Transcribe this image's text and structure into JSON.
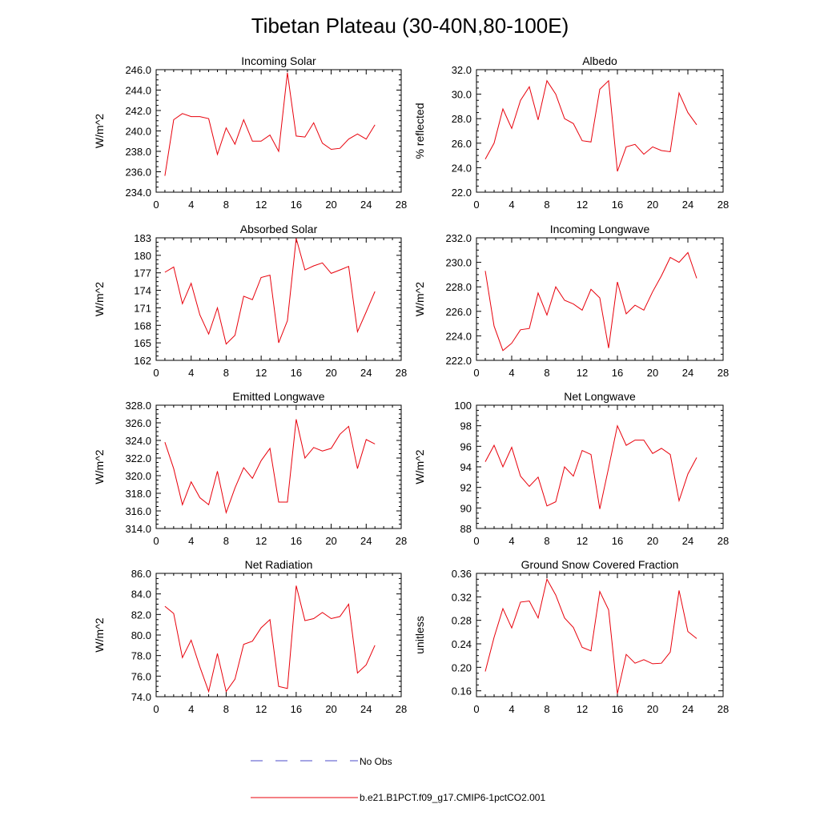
{
  "figure": {
    "title": "Tibetan Plateau (30-40N,80-100E)",
    "line_color": "#e8000b",
    "obs_color": "#4b4bc8",
    "legend": [
      {
        "label": "No Obs",
        "style": "dashed"
      },
      {
        "label": "b.e21.B1PCT.f09_g17.CMIP6-1pctCO2.001",
        "style": "solid"
      }
    ]
  },
  "chart_data": [
    {
      "type": "line",
      "title": "Incoming Solar",
      "ylabel": "W/m^2",
      "xlim": [
        0,
        28
      ],
      "ylim": [
        234,
        246
      ],
      "xticks": [
        "0",
        "4",
        "8",
        "12",
        "16",
        "20",
        "24",
        "28"
      ],
      "yticks": [
        "234.0",
        "236.0",
        "238.0",
        "240.0",
        "242.0",
        "244.0",
        "246.0"
      ],
      "x": [
        1,
        2,
        3,
        4,
        5,
        6,
        7,
        8,
        9,
        10,
        11,
        12,
        13,
        14,
        15,
        16,
        17,
        18,
        19,
        20,
        21,
        22,
        23,
        24,
        25
      ],
      "series": [
        {
          "values": [
            235.6,
            241.1,
            241.7,
            241.4,
            241.4,
            241.2,
            237.7,
            240.3,
            238.7,
            241.1,
            239.0,
            239.0,
            239.6,
            238.0,
            245.7,
            239.5,
            239.4,
            240.8,
            238.8,
            238.2,
            238.3,
            239.2,
            239.7,
            239.2,
            240.6
          ]
        }
      ]
    },
    {
      "type": "line",
      "title": "Albedo",
      "ylabel": "% reflected",
      "xlim": [
        0,
        28
      ],
      "ylim": [
        22,
        32
      ],
      "xticks": [
        "0",
        "4",
        "8",
        "12",
        "16",
        "20",
        "24",
        "28"
      ],
      "yticks": [
        "22.0",
        "24.0",
        "26.0",
        "28.0",
        "30.0",
        "32.0"
      ],
      "x": [
        1,
        2,
        3,
        4,
        5,
        6,
        7,
        8,
        9,
        10,
        11,
        12,
        13,
        14,
        15,
        16,
        17,
        18,
        19,
        20,
        21,
        22,
        23,
        24,
        25
      ],
      "series": [
        {
          "values": [
            24.7,
            26.0,
            28.8,
            27.2,
            29.5,
            30.6,
            27.9,
            31.1,
            30.0,
            28.0,
            27.6,
            26.2,
            26.1,
            30.4,
            31.1,
            23.7,
            25.7,
            25.9,
            25.1,
            25.7,
            25.4,
            25.3,
            30.1,
            28.5,
            27.5
          ]
        }
      ]
    },
    {
      "type": "line",
      "title": "Absorbed Solar",
      "ylabel": "W/m^2",
      "xlim": [
        0,
        28
      ],
      "ylim": [
        162,
        183
      ],
      "xticks": [
        "0",
        "4",
        "8",
        "12",
        "16",
        "20",
        "24",
        "28"
      ],
      "yticks": [
        "162",
        "165",
        "168",
        "171",
        "174",
        "177",
        "180",
        "183"
      ],
      "x": [
        1,
        2,
        3,
        4,
        5,
        6,
        7,
        8,
        9,
        10,
        11,
        12,
        13,
        14,
        15,
        16,
        17,
        18,
        19,
        20,
        21,
        22,
        23,
        24,
        25
      ],
      "series": [
        {
          "values": [
            177.1,
            178.0,
            171.7,
            175.2,
            169.8,
            166.5,
            171.0,
            164.8,
            166.3,
            173.0,
            172.4,
            176.2,
            176.6,
            165.0,
            168.8,
            182.9,
            177.5,
            178.2,
            178.7,
            176.9,
            177.5,
            178.1,
            166.9,
            170.3,
            173.8
          ]
        }
      ]
    },
    {
      "type": "line",
      "title": "Incoming Longwave",
      "ylabel": "W/m^2",
      "xlim": [
        0,
        28
      ],
      "ylim": [
        222,
        232
      ],
      "xticks": [
        "0",
        "4",
        "8",
        "12",
        "16",
        "20",
        "24",
        "28"
      ],
      "yticks": [
        "222.0",
        "224.0",
        "226.0",
        "228.0",
        "230.0",
        "232.0"
      ],
      "x": [
        1,
        2,
        3,
        4,
        5,
        6,
        7,
        8,
        9,
        10,
        11,
        12,
        13,
        14,
        15,
        16,
        17,
        18,
        19,
        20,
        21,
        22,
        23,
        24,
        25
      ],
      "series": [
        {
          "values": [
            229.3,
            224.8,
            222.8,
            223.4,
            224.5,
            224.6,
            227.5,
            225.7,
            228.0,
            226.9,
            226.6,
            226.1,
            227.8,
            227.1,
            223.0,
            228.4,
            225.8,
            226.5,
            226.1,
            227.6,
            228.9,
            230.4,
            230.0,
            230.8,
            228.7
          ]
        }
      ]
    },
    {
      "type": "line",
      "title": "Emitted Longwave",
      "ylabel": "W/m^2",
      "xlim": [
        0,
        28
      ],
      "ylim": [
        314,
        328
      ],
      "xticks": [
        "0",
        "4",
        "8",
        "12",
        "16",
        "20",
        "24",
        "28"
      ],
      "yticks": [
        "314.0",
        "316.0",
        "318.0",
        "320.0",
        "322.0",
        "324.0",
        "326.0",
        "328.0"
      ],
      "x": [
        1,
        2,
        3,
        4,
        5,
        6,
        7,
        8,
        9,
        10,
        11,
        12,
        13,
        14,
        15,
        16,
        17,
        18,
        19,
        20,
        21,
        22,
        23,
        24,
        25
      ],
      "series": [
        {
          "values": [
            323.8,
            320.8,
            316.7,
            319.3,
            317.5,
            316.7,
            320.5,
            315.8,
            318.6,
            320.9,
            319.7,
            321.7,
            323.1,
            317.0,
            317.0,
            326.4,
            322.0,
            323.2,
            322.8,
            323.1,
            324.7,
            325.6,
            320.8,
            324.1,
            323.6
          ]
        }
      ]
    },
    {
      "type": "line",
      "title": "Net Longwave",
      "ylabel": "W/m^2",
      "xlim": [
        0,
        28
      ],
      "ylim": [
        88,
        100
      ],
      "xticks": [
        "0",
        "4",
        "8",
        "12",
        "16",
        "20",
        "24",
        "28"
      ],
      "yticks": [
        "88",
        "90",
        "92",
        "94",
        "96",
        "98",
        "100"
      ],
      "x": [
        1,
        2,
        3,
        4,
        5,
        6,
        7,
        8,
        9,
        10,
        11,
        12,
        13,
        14,
        15,
        16,
        17,
        18,
        19,
        20,
        21,
        22,
        23,
        24,
        25
      ],
      "series": [
        {
          "values": [
            94.5,
            96.1,
            94.0,
            95.9,
            93.1,
            92.1,
            93.0,
            90.2,
            90.6,
            94.0,
            93.1,
            95.6,
            95.2,
            89.9,
            93.9,
            98.0,
            96.1,
            96.6,
            96.6,
            95.3,
            95.8,
            95.2,
            90.7,
            93.3,
            94.9
          ]
        }
      ]
    },
    {
      "type": "line",
      "title": "Net Radiation",
      "ylabel": "W/m^2",
      "xlim": [
        0,
        28
      ],
      "ylim": [
        74,
        86
      ],
      "xticks": [
        "0",
        "4",
        "8",
        "12",
        "16",
        "20",
        "24",
        "28"
      ],
      "yticks": [
        "74.0",
        "76.0",
        "78.0",
        "80.0",
        "82.0",
        "84.0",
        "86.0"
      ],
      "x": [
        1,
        2,
        3,
        4,
        5,
        6,
        7,
        8,
        9,
        10,
        11,
        12,
        13,
        14,
        15,
        16,
        17,
        18,
        19,
        20,
        21,
        22,
        23,
        24,
        25
      ],
      "series": [
        {
          "values": [
            82.8,
            82.1,
            77.8,
            79.5,
            76.9,
            74.5,
            78.2,
            74.5,
            75.7,
            79.1,
            79.4,
            80.7,
            81.5,
            75.0,
            74.8,
            84.8,
            81.4,
            81.6,
            82.2,
            81.6,
            81.8,
            83.0,
            76.3,
            77.1,
            79.0
          ]
        }
      ]
    },
    {
      "type": "line",
      "title": "Ground Snow Covered Fraction",
      "ylabel": "unitless",
      "xlim": [
        0,
        28
      ],
      "ylim": [
        0.15,
        0.36
      ],
      "xticks": [
        "0",
        "4",
        "8",
        "12",
        "16",
        "20",
        "24",
        "28"
      ],
      "yticks": [
        "0.16",
        "0.20",
        "0.24",
        "0.28",
        "0.32",
        "0.36"
      ],
      "x": [
        1,
        2,
        3,
        4,
        5,
        6,
        7,
        8,
        9,
        10,
        11,
        12,
        13,
        14,
        15,
        16,
        17,
        18,
        19,
        20,
        21,
        22,
        23,
        24,
        25
      ],
      "series": [
        {
          "values": [
            0.193,
            0.251,
            0.3,
            0.267,
            0.311,
            0.313,
            0.284,
            0.35,
            0.323,
            0.284,
            0.268,
            0.234,
            0.228,
            0.329,
            0.298,
            0.155,
            0.222,
            0.207,
            0.213,
            0.206,
            0.207,
            0.226,
            0.331,
            0.261,
            0.249
          ]
        }
      ]
    }
  ]
}
